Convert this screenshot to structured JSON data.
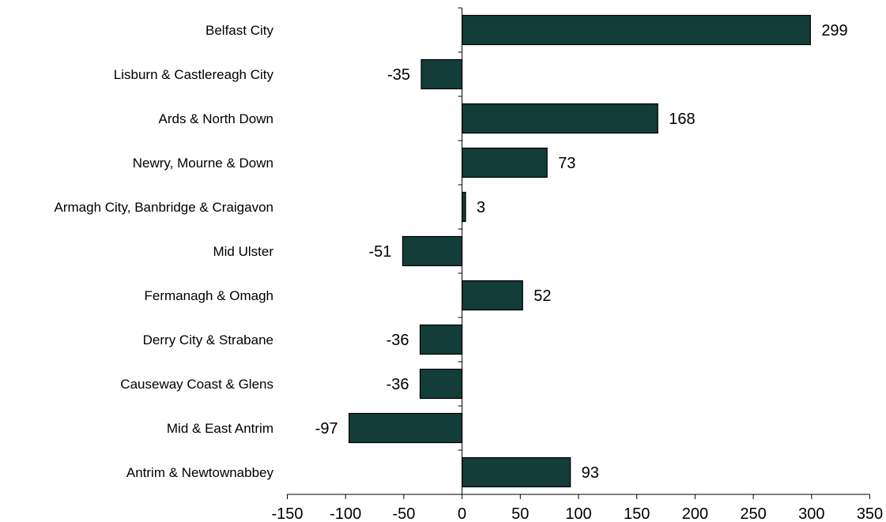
{
  "chart_data": {
    "type": "bar",
    "orientation": "horizontal",
    "title": "",
    "xlabel": "",
    "ylabel": "",
    "categories": [
      "Belfast City",
      "Lisburn & Castlereagh City",
      "Ards & North Down",
      "Newry, Mourne & Down",
      "Armagh City, Banbridge & Craigavon",
      "Mid Ulster",
      "Fermanagh & Omagh",
      "Derry City & Strabane",
      "Causeway Coast & Glens",
      "Mid & East Antrim",
      "Antrim & Newtownabbey"
    ],
    "values": [
      299,
      -35,
      168,
      73,
      3,
      -51,
      52,
      -36,
      -36,
      -97,
      93
    ],
    "xlim": [
      -150,
      350
    ],
    "xticks": [
      -150,
      -100,
      -50,
      0,
      50,
      100,
      150,
      200,
      250,
      300,
      350
    ],
    "grid": false,
    "legend": "none",
    "bar_color": "#133d38"
  }
}
